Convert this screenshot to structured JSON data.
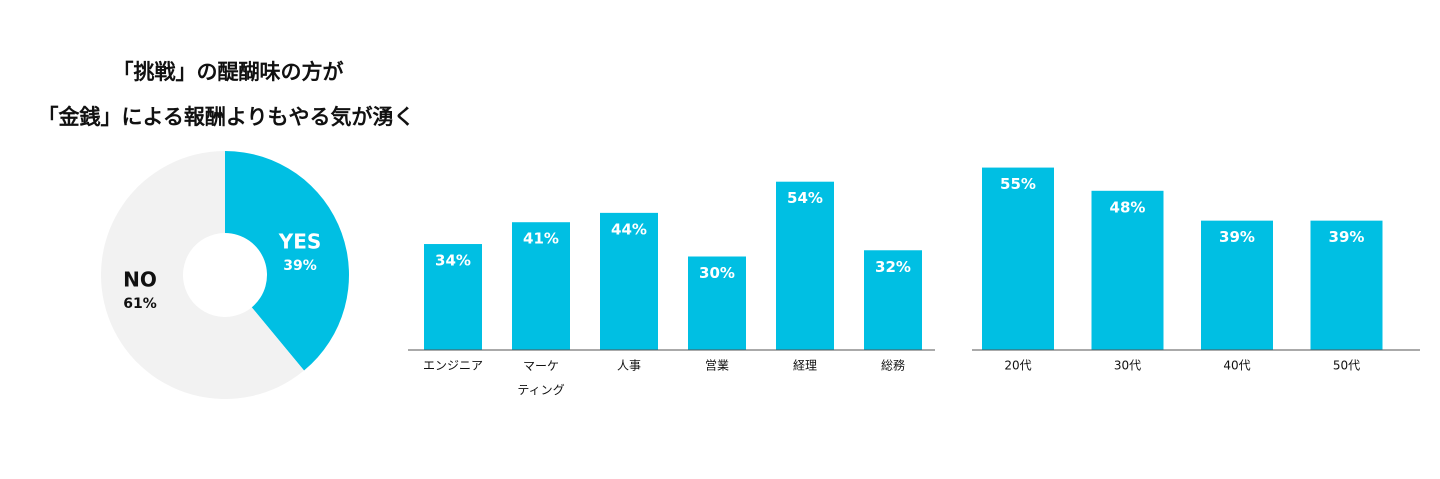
{
  "title": [
    "「挑戦」の醍醐味の方が",
    "「金銭」による報酬よりもやる気が湧く"
  ],
  "chart_data": [
    {
      "type": "pie",
      "categories": [
        "YES",
        "NO"
      ],
      "values": [
        39,
        61
      ],
      "value_labels": [
        "39%",
        "61%"
      ],
      "colors": [
        "#00bfe3",
        "#f2f2f2"
      ]
    },
    {
      "type": "bar",
      "categories": [
        "エンジニア",
        "マーケ\nティング",
        "人事",
        "営業",
        "経理",
        "総務"
      ],
      "values": [
        34,
        41,
        44,
        30,
        54,
        32
      ],
      "value_labels": [
        "34%",
        "41%",
        "44%",
        "30%",
        "54%",
        "32%"
      ],
      "color": "#00bfe3",
      "ylim": [
        0,
        60
      ]
    },
    {
      "type": "bar",
      "categories": [
        "20代",
        "30代",
        "40代",
        "50代"
      ],
      "values": [
        55,
        48,
        39,
        39
      ],
      "value_labels": [
        "55%",
        "48%",
        "39%",
        "39%"
      ],
      "color": "#00bfe3",
      "ylim": [
        0,
        60
      ]
    }
  ]
}
